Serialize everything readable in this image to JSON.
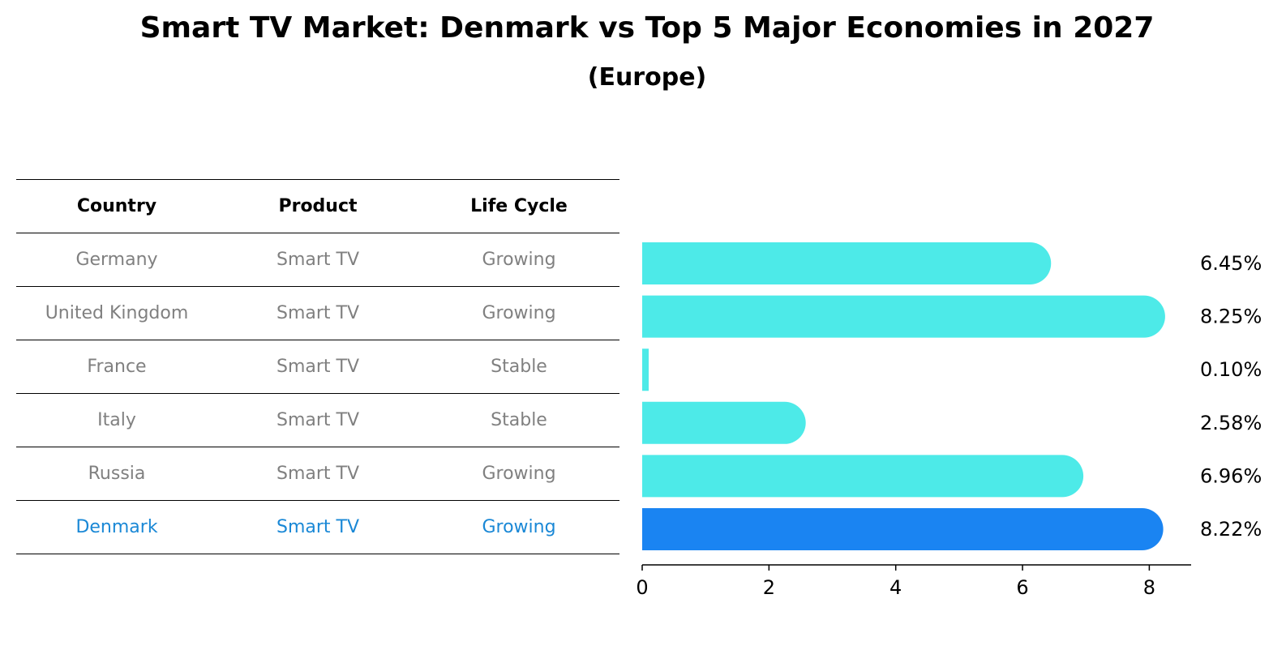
{
  "chart_data": {
    "type": "bar",
    "orientation": "horizontal",
    "title": "Smart TV Market: Denmark vs Top 5 Major Economies in 2027",
    "subtitle": "(Europe)",
    "table": {
      "headers": [
        "Country",
        "Product",
        "Life Cycle"
      ],
      "rows": [
        [
          "Germany",
          "Smart TV",
          "Growing"
        ],
        [
          "United Kingdom",
          "Smart TV",
          "Growing"
        ],
        [
          "France",
          "Smart TV",
          "Stable"
        ],
        [
          "Italy",
          "Smart TV",
          "Stable"
        ],
        [
          "Russia",
          "Smart TV",
          "Growing"
        ],
        [
          "Denmark",
          "Smart TV",
          "Growing"
        ]
      ],
      "highlight_row": 5
    },
    "categories": [
      "Germany",
      "United Kingdom",
      "France",
      "Italy",
      "Russia",
      "Denmark"
    ],
    "values": [
      6.45,
      8.25,
      0.1,
      2.58,
      6.96,
      8.22
    ],
    "value_labels": [
      "6.45%",
      "8.25%",
      "0.10%",
      "2.58%",
      "6.96%",
      "8.22%"
    ],
    "xlim": [
      0,
      8.66
    ],
    "xticks": [
      0,
      2,
      4,
      6,
      8
    ],
    "xlabel": "",
    "ylabel": "",
    "colors": {
      "bar": "#4deae8",
      "highlight": "#1a84f2",
      "text_muted": "#808080",
      "text_highlight": "#1a88d6"
    }
  }
}
